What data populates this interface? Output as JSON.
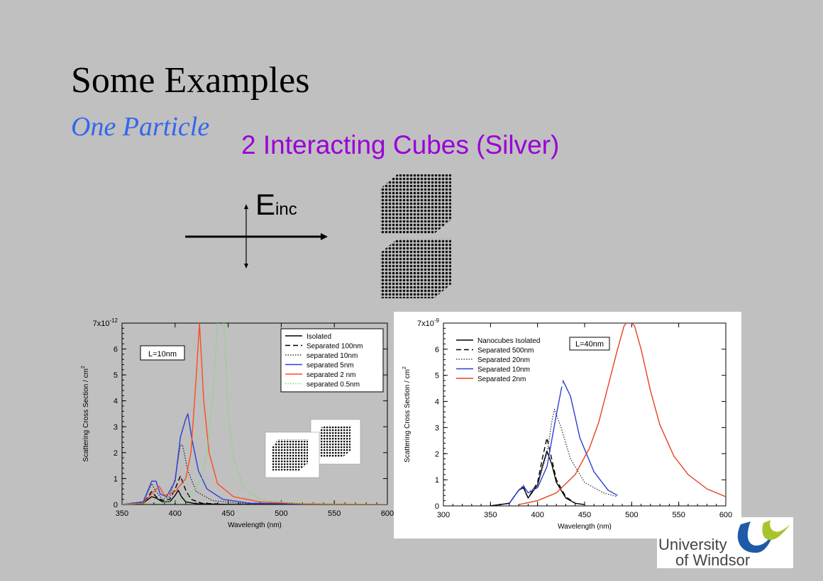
{
  "slide": {
    "title": "Some Examples",
    "subtitle": "One Particle",
    "heading": "2 Interacting Cubes (Silver)",
    "field_label": "E",
    "field_label_sub": "inc",
    "logo_line1": "University",
    "logo_line2": "of Windsor",
    "colors": {
      "title": "#000000",
      "subtitle": "#3366ee",
      "heading": "#9a00d8",
      "background": "#c0c0c0",
      "logo_blue": "#1f5aa8",
      "logo_green": "#a8c42c"
    }
  },
  "chart_data": [
    {
      "type": "line",
      "xlabel": "Wavelength (nm)",
      "ylabel": "Scattering Cross Section / cm",
      "ylabel_sup": "2",
      "xlim": [
        350,
        600
      ],
      "ylim": [
        0,
        7
      ],
      "xticks": [
        "350",
        "400",
        "450",
        "500",
        "550",
        "600"
      ],
      "yticks": [
        "0",
        "1",
        "2",
        "3",
        "4",
        "5",
        "6",
        "7x10"
      ],
      "ytick_top_exp": "-12",
      "annotation": "L=10nm",
      "legend_position": "top-right",
      "series": [
        {
          "name": "Isolated",
          "color": "#000000",
          "dash": "solid",
          "x": [
            350,
            370,
            378,
            382,
            388,
            395,
            400,
            403,
            406,
            410,
            420,
            450,
            550
          ],
          "y": [
            0.0,
            0.05,
            0.3,
            0.25,
            0.1,
            0.1,
            0.35,
            0.55,
            0.3,
            0.1,
            0.03,
            0.0,
            0.0
          ]
        },
        {
          "name": "Separated 100nm",
          "color": "#000000",
          "dash": "dashed",
          "x": [
            350,
            370,
            378,
            382,
            388,
            395,
            400,
            405,
            410,
            415,
            425,
            450,
            550
          ],
          "y": [
            0.0,
            0.05,
            0.5,
            0.3,
            0.15,
            0.2,
            0.6,
            1.1,
            0.55,
            0.2,
            0.05,
            0.0,
            0.0
          ]
        },
        {
          "name": "separated 10nm",
          "color": "#333333",
          "dash": "dotted",
          "x": [
            350,
            370,
            378,
            382,
            388,
            395,
            400,
            405,
            407,
            412,
            420,
            435,
            460,
            550
          ],
          "y": [
            0.0,
            0.1,
            0.8,
            0.5,
            0.2,
            0.3,
            1.0,
            2.3,
            2.3,
            1.3,
            0.5,
            0.15,
            0.05,
            0.0
          ]
        },
        {
          "name": "separated 5nm",
          "color": "#2b3fd4",
          "dash": "solid",
          "x": [
            350,
            370,
            378,
            382,
            386,
            392,
            400,
            405,
            410,
            412,
            416,
            422,
            430,
            445,
            470,
            550
          ],
          "y": [
            0.0,
            0.1,
            0.9,
            0.9,
            0.4,
            0.3,
            0.9,
            2.6,
            3.3,
            3.5,
            2.5,
            1.3,
            0.6,
            0.2,
            0.05,
            0.0
          ]
        },
        {
          "name": "separated 2 nm",
          "color": "#ff4b1e",
          "dash": "solid",
          "x": [
            350,
            370,
            380,
            385,
            390,
            400,
            410,
            415,
            420,
            423,
            427,
            432,
            440,
            455,
            480,
            520,
            600
          ],
          "y": [
            0.0,
            0.05,
            0.5,
            0.7,
            0.35,
            0.5,
            1.0,
            2.0,
            5.0,
            7.0,
            4.0,
            2.0,
            0.8,
            0.3,
            0.1,
            0.03,
            0.0
          ]
        },
        {
          "name": "separated 0.5nm",
          "color": "#6fe060",
          "dash": "dotted",
          "x": [
            350,
            400,
            415,
            425,
            430,
            435,
            440,
            443,
            446,
            450,
            455,
            465,
            480,
            510,
            550,
            600
          ],
          "y": [
            0.0,
            0.1,
            0.4,
            1.0,
            2.0,
            4.0,
            7.0,
            8.0,
            7.0,
            3.5,
            1.8,
            0.6,
            0.2,
            0.05,
            0.02,
            0.0
          ]
        }
      ]
    },
    {
      "type": "line",
      "xlabel": "Wavelength (nm)",
      "ylabel": "Scattering Cross Section / cm",
      "ylabel_sup": "2",
      "xlim": [
        300,
        600
      ],
      "ylim": [
        0,
        7
      ],
      "xticks": [
        "300",
        "350",
        "400",
        "450",
        "500",
        "550",
        "600"
      ],
      "yticks": [
        "0",
        "1",
        "2",
        "3",
        "4",
        "5",
        "6",
        "7x10"
      ],
      "ytick_top_exp": "-9",
      "annotation": "L=40nm",
      "legend_position": "top-left",
      "series": [
        {
          "name": "Nanocubes Isolated",
          "color": "#000000",
          "dash": "solid",
          "x": [
            350,
            370,
            380,
            385,
            390,
            400,
            405,
            410,
            415,
            420,
            430,
            440,
            450
          ],
          "y": [
            0.0,
            0.1,
            0.6,
            0.7,
            0.3,
            0.8,
            1.5,
            2.1,
            1.6,
            0.9,
            0.3,
            0.1,
            0.05
          ]
        },
        {
          "name": "Separated 500nm",
          "color": "#000000",
          "dash": "dashed",
          "x": [
            350,
            370,
            380,
            385,
            390,
            400,
            405,
            410,
            415,
            420,
            430,
            440
          ],
          "y": [
            0.0,
            0.1,
            0.6,
            0.7,
            0.3,
            0.9,
            1.8,
            2.6,
            1.8,
            1.0,
            0.35,
            0.1
          ]
        },
        {
          "name": "Separated 20nm",
          "color": "#444444",
          "dash": "dotted",
          "x": [
            370,
            380,
            385,
            390,
            400,
            410,
            415,
            418,
            425,
            435,
            450,
            470,
            485
          ],
          "y": [
            0.1,
            0.6,
            0.8,
            0.5,
            0.8,
            2.0,
            3.2,
            3.7,
            3.0,
            1.8,
            0.9,
            0.5,
            0.35
          ]
        },
        {
          "name": "Separated 10nm",
          "color": "#2b3fd4",
          "dash": "solid",
          "x": [
            370,
            380,
            385,
            390,
            400,
            410,
            420,
            427,
            435,
            445,
            460,
            475,
            485
          ],
          "y": [
            0.1,
            0.6,
            0.75,
            0.5,
            0.7,
            1.5,
            3.5,
            4.8,
            4.2,
            2.6,
            1.3,
            0.6,
            0.4
          ]
        },
        {
          "name": "Separated 2nm",
          "color": "#e84020",
          "dash": "solid",
          "x": [
            380,
            400,
            420,
            440,
            455,
            465,
            475,
            485,
            492,
            497,
            503,
            510,
            520,
            530,
            545,
            560,
            580,
            600
          ],
          "y": [
            0.05,
            0.2,
            0.5,
            1.2,
            2.2,
            3.2,
            4.6,
            6.0,
            6.9,
            7.1,
            6.9,
            6.0,
            4.4,
            3.1,
            1.9,
            1.2,
            0.65,
            0.35
          ]
        }
      ]
    }
  ]
}
